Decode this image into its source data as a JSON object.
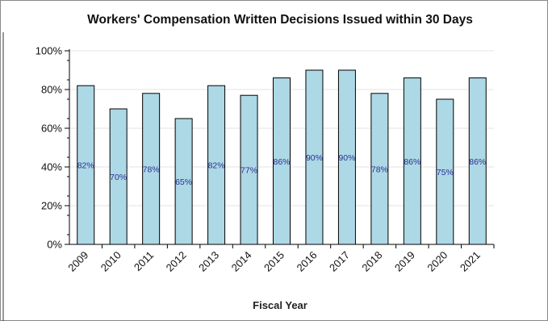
{
  "chart_data": {
    "type": "bar",
    "title": "Workers' Compensation Written Decisions Issued within 30 Days",
    "xlabel": "Fiscal Year",
    "ylabel": "",
    "categories": [
      "2009",
      "2010",
      "2011",
      "2012",
      "2013",
      "2014",
      "2015",
      "2016",
      "2017",
      "2018",
      "2019",
      "2020",
      "2021"
    ],
    "values": [
      82,
      70,
      78,
      65,
      82,
      77,
      86,
      90,
      90,
      78,
      86,
      75,
      86
    ],
    "data_labels": [
      "82%",
      "70%",
      "78%",
      "65%",
      "82%",
      "77%",
      "86%",
      "90%",
      "90%",
      "78%",
      "86%",
      "75%",
      "86%"
    ],
    "ylim": [
      0,
      100
    ],
    "yticks": [
      0,
      20,
      40,
      60,
      80,
      100
    ],
    "ytick_labels": [
      "0%",
      "20%",
      "40%",
      "60%",
      "80%",
      "100%"
    ],
    "grid": true,
    "bar_color": "#add8e6",
    "bar_edge_color": "#000000",
    "label_color": "#2b2f8f"
  }
}
